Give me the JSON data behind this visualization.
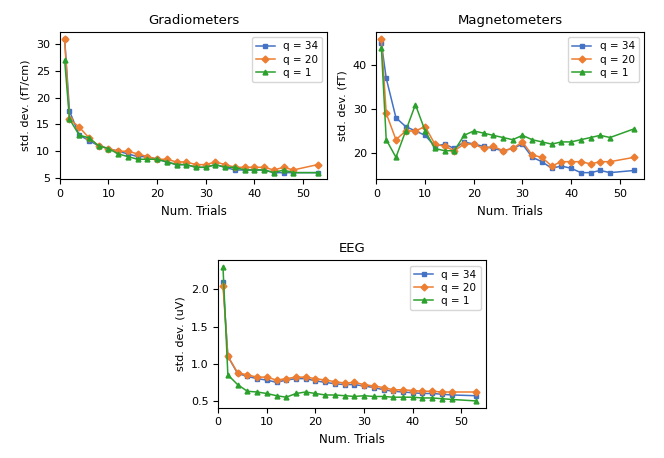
{
  "x_ticks": [
    0,
    10,
    20,
    30,
    40,
    50
  ],
  "grad": {
    "title": "Gradiometers",
    "ylabel": "std. dev. (fT/cm)",
    "xlabel": "Num. Trials",
    "q34": [
      31.0,
      17.5,
      13.0,
      12.0,
      11.0,
      10.5,
      10.0,
      9.5,
      9.0,
      9.0,
      8.5,
      8.0,
      7.5,
      7.5,
      7.0,
      7.0,
      7.5,
      7.0,
      6.5,
      6.5,
      6.5,
      6.5,
      6.0,
      6.0,
      6.0,
      6.0
    ],
    "q20": [
      31.0,
      16.0,
      14.5,
      12.5,
      11.0,
      10.5,
      10.0,
      10.0,
      9.5,
      9.0,
      8.5,
      8.5,
      8.0,
      8.0,
      7.5,
      7.5,
      8.0,
      7.5,
      7.0,
      7.0,
      7.0,
      7.0,
      6.5,
      7.0,
      6.5,
      7.5
    ],
    "q1": [
      27.0,
      16.0,
      13.0,
      12.5,
      11.0,
      10.5,
      9.5,
      9.0,
      8.5,
      8.5,
      8.5,
      8.0,
      7.5,
      7.5,
      7.0,
      7.0,
      7.5,
      7.0,
      7.0,
      6.5,
      6.5,
      6.5,
      6.0,
      6.5,
      6.0,
      6.0
    ],
    "x": [
      1,
      2,
      4,
      6,
      8,
      10,
      12,
      14,
      16,
      18,
      20,
      22,
      24,
      26,
      28,
      30,
      32,
      34,
      36,
      38,
      40,
      42,
      44,
      46,
      48,
      53
    ]
  },
  "mag": {
    "title": "Magnetometers",
    "ylabel": "std. dev. (fT)",
    "xlabel": "Num. Trials",
    "q34": [
      45.0,
      37.0,
      28.0,
      26.0,
      25.0,
      24.0,
      21.5,
      22.0,
      21.0,
      22.5,
      22.0,
      21.5,
      21.0,
      20.5,
      21.0,
      22.0,
      19.0,
      18.0,
      16.5,
      17.0,
      16.5,
      15.5,
      15.5,
      16.0,
      15.5,
      16.0
    ],
    "q20": [
      46.0,
      29.0,
      23.0,
      25.0,
      25.0,
      26.0,
      22.0,
      21.5,
      20.5,
      22.0,
      22.0,
      21.0,
      21.5,
      20.5,
      21.0,
      22.5,
      19.5,
      19.0,
      17.0,
      18.0,
      18.0,
      18.0,
      17.5,
      18.0,
      18.0,
      19.0
    ],
    "q1": [
      44.0,
      23.0,
      19.0,
      25.0,
      31.0,
      25.0,
      21.0,
      20.5,
      20.5,
      24.0,
      25.0,
      24.5,
      24.0,
      23.5,
      23.0,
      24.0,
      23.0,
      22.5,
      22.0,
      22.5,
      22.5,
      23.0,
      23.5,
      24.0,
      23.5,
      25.5
    ],
    "x": [
      1,
      2,
      4,
      6,
      8,
      10,
      12,
      14,
      16,
      18,
      20,
      22,
      24,
      26,
      28,
      30,
      32,
      34,
      36,
      38,
      40,
      42,
      44,
      46,
      48,
      53
    ]
  },
  "eeg": {
    "title": "EEG",
    "ylabel": "std. dev. (uV)",
    "xlabel": "Num. Trials",
    "q34": [
      2.1,
      1.1,
      0.87,
      0.83,
      0.8,
      0.78,
      0.75,
      0.78,
      0.8,
      0.8,
      0.77,
      0.75,
      0.73,
      0.72,
      0.72,
      0.7,
      0.68,
      0.65,
      0.63,
      0.62,
      0.61,
      0.6,
      0.6,
      0.59,
      0.58,
      0.57
    ],
    "q20": [
      2.05,
      1.1,
      0.88,
      0.85,
      0.82,
      0.82,
      0.78,
      0.8,
      0.82,
      0.82,
      0.8,
      0.78,
      0.76,
      0.74,
      0.75,
      0.72,
      0.7,
      0.68,
      0.65,
      0.65,
      0.64,
      0.63,
      0.63,
      0.62,
      0.62,
      0.62
    ],
    "q1": [
      2.3,
      0.85,
      0.72,
      0.63,
      0.62,
      0.6,
      0.57,
      0.55,
      0.6,
      0.62,
      0.6,
      0.58,
      0.58,
      0.57,
      0.56,
      0.57,
      0.56,
      0.56,
      0.55,
      0.55,
      0.55,
      0.54,
      0.54,
      0.53,
      0.52,
      0.5
    ],
    "x": [
      1,
      2,
      4,
      6,
      8,
      10,
      12,
      14,
      16,
      18,
      20,
      22,
      24,
      26,
      28,
      30,
      32,
      34,
      36,
      38,
      40,
      42,
      44,
      46,
      48,
      53
    ]
  },
  "colors": {
    "q34": "#4472c4",
    "q20": "#ed7d31",
    "q1": "#2ca02c"
  },
  "legend_labels": {
    "q34": "q = 34",
    "q20": "q = 20",
    "q1": "q = 1"
  },
  "fig_width": 6.64,
  "fig_height": 4.58,
  "dpi": 100
}
